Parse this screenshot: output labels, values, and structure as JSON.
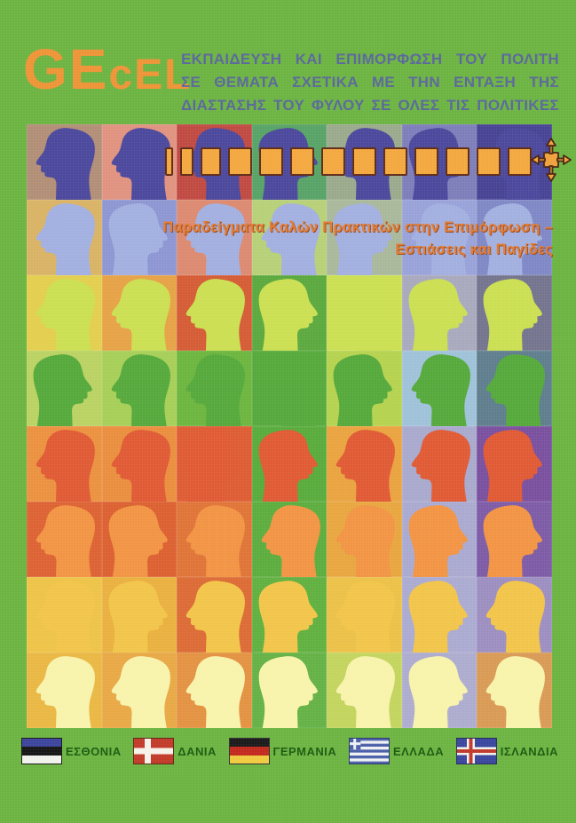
{
  "logo": {
    "part1": "GE",
    "part2": "cEL"
  },
  "title": {
    "lines": [
      "ΕΚΠΑΙΔΕΥΣΗ ΚΑΙ ΕΠΙΜΟΡΦΩΣΗ ΤΟΥ ΠΟΛΙΤΗ",
      "ΣΕ ΘΕΜΑΤΑ ΣΧΕΤΙΚΑ ΜΕ ΤΗΝ ΕΝΤΑΞΗ ΤΗΣ",
      "ΔΙΑΣΤΑΣΗΣ ΤΟΥ ΦΥΛΟΥ ΣΕ ΟΛΕΣ ΤΙΣ ΠΟΛΙΤΙΚΕΣ"
    ]
  },
  "subtitle": {
    "lines": [
      "Παραδείγματα Καλών Πρακτικών στην Επιμόρφωση –",
      "Εστιάσεις και Παγίδες"
    ]
  },
  "progress": {
    "segment_widths": [
      9,
      15,
      23,
      27,
      27,
      27,
      27,
      27,
      27,
      27,
      27,
      27,
      27
    ],
    "move_icon": "four-way-arrow-icon"
  },
  "mosaic": {
    "rows": 8,
    "cols": 7,
    "head_colors": [
      "#4b489c",
      "#a2b0e0",
      "#cbdf52",
      "#55a93b",
      "#e05a34",
      "#f29444",
      "#f2c54a",
      "#f8f3ab"
    ],
    "facing": [
      "LLLRLRL",
      "LRLLRLR",
      "LLLRLRR",
      "RLLLRLL",
      "LLRRLLR",
      "LRLLLRR",
      "LRLRLRL",
      "LLLRLRL"
    ],
    "cell_backgrounds": [
      [
        "#b28e76",
        "#e0927f",
        "#c04a42",
        "#57a266",
        "#9aa98c",
        "#7d7dba",
        "#474394"
      ],
      [
        "#d9b365",
        "#8e96d2",
        "#dc8a70",
        "#b7d077",
        "#a9b89b",
        "#99a2d8",
        "#7f88c6"
      ],
      [
        "#e3ce4d",
        "#e6a246",
        "#d45c35",
        "#5ba93e",
        "#cbdf52",
        "#a9a9bd",
        "#74748e"
      ],
      [
        "#b9d262",
        "#a6cf57",
        "#6cb53e",
        "#55a93b",
        "#b5d24f",
        "#9fc2d8",
        "#5f7e8d"
      ],
      [
        "#eb9140",
        "#ea8e3e",
        "#de5c33",
        "#58ab3c",
        "#eaa33f",
        "#a9a9cd",
        "#7a509e"
      ],
      [
        "#dd6233",
        "#dc6030",
        "#e07437",
        "#5cad3e",
        "#e8a63f",
        "#aaaad0",
        "#7d5ba6"
      ],
      [
        "#eec347",
        "#eab03f",
        "#dc6b35",
        "#60b040",
        "#ecc148",
        "#abaad1",
        "#9c8ec0"
      ],
      [
        "#e9b743",
        "#e8a845",
        "#e39241",
        "#64b145",
        "#c3d45e",
        "#adaccf",
        "#d99a55"
      ]
    ]
  },
  "footer": {
    "countries": [
      {
        "name": "ΕΣΘΟΝΙΑ",
        "flag": "estonia-flag-icon"
      },
      {
        "name": "ΔΑΝΙΑ",
        "flag": "denmark-flag-icon"
      },
      {
        "name": "ΓΕΡΜΑΝΙΑ",
        "flag": "germany-flag-icon"
      },
      {
        "name": "ΕΛΛΑΔΑ",
        "flag": "greece-flag-icon"
      },
      {
        "name": "ΙΣΛΑΝΔΙΑ",
        "flag": "iceland-flag-icon"
      }
    ]
  },
  "colors": {
    "page-bg": "#6cb441",
    "logo-color": "#ee9437",
    "title-color": "#5a679b",
    "subtitle-color": "#e07b36",
    "subtitle-shadow": "#9e4a1c",
    "square-fill": "#f3a83f",
    "square-border": "#5e2b16",
    "flag-label-color": "#1d5a10"
  }
}
